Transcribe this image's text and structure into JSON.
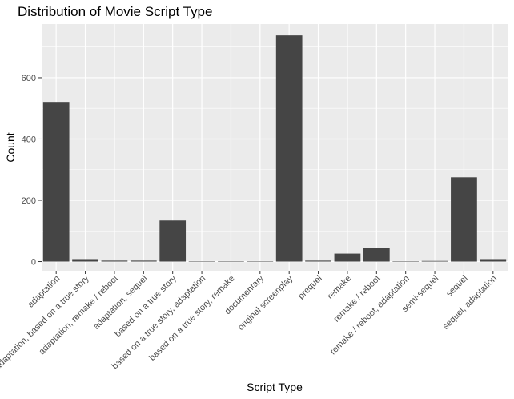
{
  "chart_data": {
    "type": "bar",
    "title": "Distribution of Movie Script Type",
    "xlabel": "Script Type",
    "ylabel": "Count",
    "categories": [
      "adaptation",
      "adaptation, based on a true story",
      "adaptation, remake / reboot",
      "adaptation, sequel",
      "based on a true story",
      "based on a true story, adaptation",
      "based on a true story, remake",
      "documentary",
      "original screenplay",
      "prequel",
      "remake",
      "remake / reboot",
      "remake / reboot, adaptation",
      "semi-sequel",
      "sequel",
      "sequel, adaptation"
    ],
    "values": [
      521,
      8,
      3,
      3,
      134,
      1,
      1,
      1,
      738,
      3,
      26,
      45,
      1,
      2,
      275,
      8
    ],
    "ylim": [
      -30,
      775
    ],
    "yticks": [
      0,
      200,
      400,
      600
    ],
    "grid": true,
    "bar_color": "#454545",
    "panel_color": "#ebebeb",
    "grid_color": "#ffffff"
  }
}
